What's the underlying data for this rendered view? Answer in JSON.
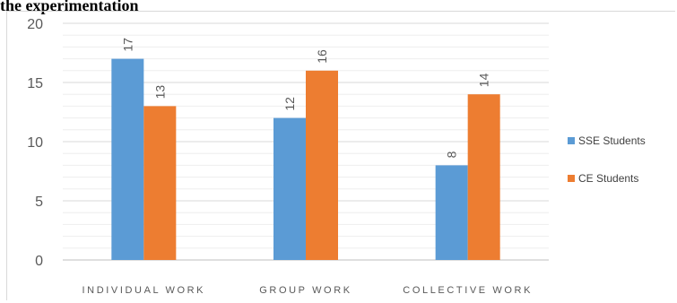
{
  "caption": "the experimentation",
  "chart_data": {
    "type": "bar",
    "categories": [
      "INDIVIDUAL WORK",
      "GROUP WORK",
      "COLLECTIVE WORK"
    ],
    "series": [
      {
        "name": "SSE Students",
        "values": [
          17,
          12,
          8
        ],
        "color": "#5b9bd5"
      },
      {
        "name": "CE Students",
        "values": [
          13,
          16,
          14
        ],
        "color": "#ed7d31"
      }
    ],
    "ylim": [
      0,
      20
    ],
    "yticks": [
      "0",
      "5",
      "10",
      "15",
      "20"
    ],
    "grid": true,
    "legend": "right",
    "data_labels": true,
    "title": "",
    "xlabel": "",
    "ylabel": ""
  }
}
